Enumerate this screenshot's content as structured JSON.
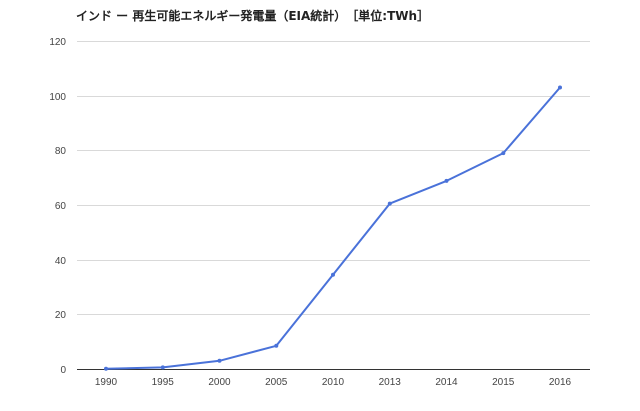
{
  "chart_data": {
    "type": "line",
    "title": "インド ー 再生可能エネルギー発電量（EIA統計）　［単位:TWh］",
    "xlabel": "",
    "ylabel": "",
    "categories": [
      "1990",
      "1995",
      "2000",
      "2005",
      "2010",
      "2013",
      "2014",
      "2015",
      "2016"
    ],
    "series": [
      {
        "values": [
          0.1,
          0.6,
          3,
          8.5,
          34.5,
          60.5,
          68.8,
          79,
          103
        ]
      }
    ],
    "ylim": [
      0,
      120
    ],
    "yticks": [
      "0",
      "20",
      "40",
      "60",
      "80",
      "100",
      "120"
    ],
    "grid": true,
    "legend": "none",
    "line_color": "#4a72d9"
  }
}
